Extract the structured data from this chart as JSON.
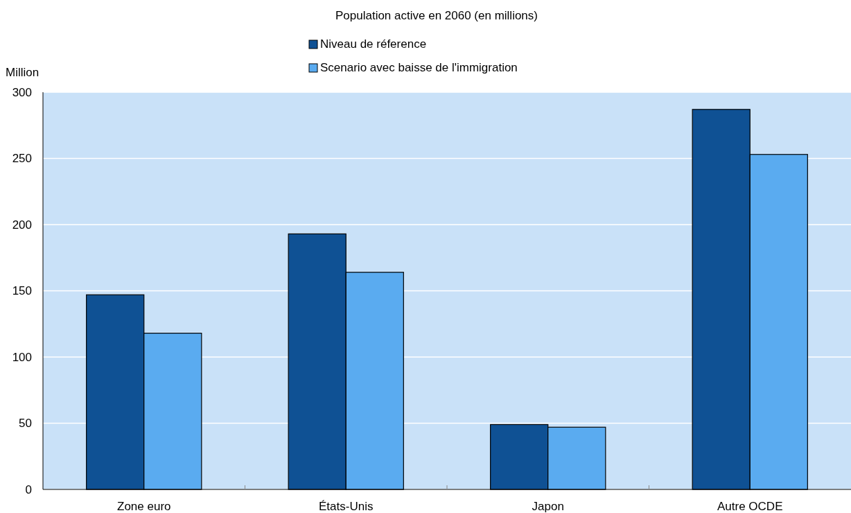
{
  "chart_data": {
    "type": "bar",
    "title": "Population active en 2060 (en millions)",
    "ylabel": "Million",
    "categories": [
      "Zone euro",
      "États-Unis",
      "Japon",
      "Autre OCDE"
    ],
    "series": [
      {
        "name": "Niveau de réference",
        "color": "#0f5194",
        "values": [
          147,
          193,
          49,
          287
        ]
      },
      {
        "name": "Scenario avec baisse de l'immigration",
        "color": "#5aabf0",
        "values": [
          118,
          164,
          47,
          253
        ]
      }
    ],
    "ylim": [
      0,
      300
    ],
    "yticks": [
      0,
      50,
      100,
      150,
      200,
      250,
      300
    ],
    "grid": "y",
    "legend": "top"
  }
}
